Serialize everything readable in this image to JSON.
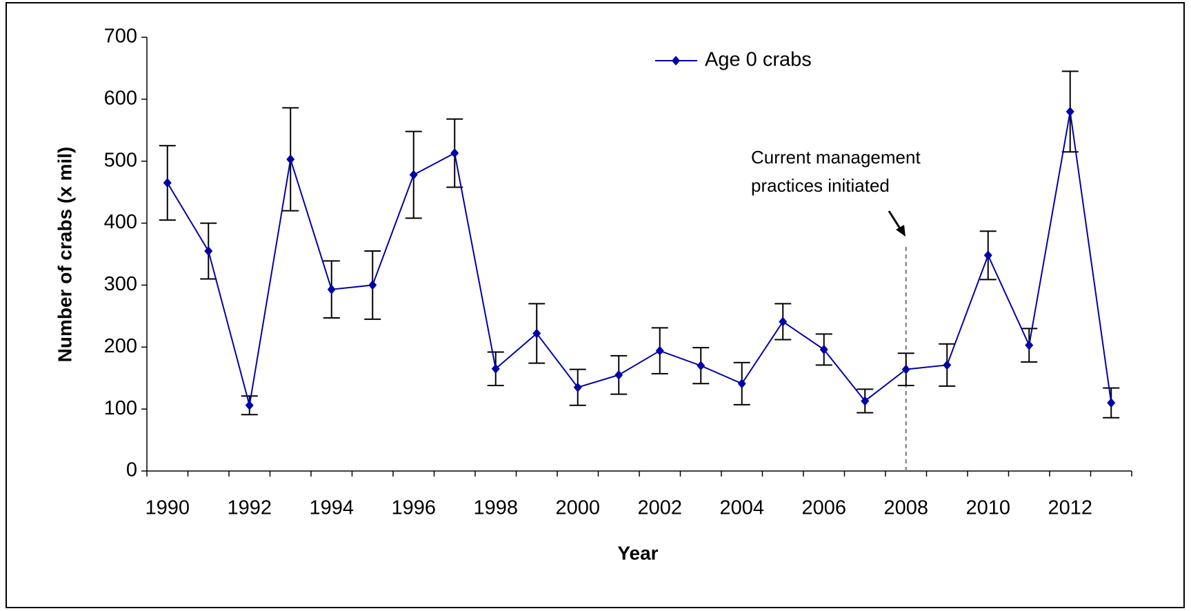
{
  "chart_data": {
    "type": "line",
    "xlabel": "Year",
    "ylabel": "Number of crabs (x mil)",
    "categories": [
      "1990",
      null,
      "1992",
      null,
      "1994",
      null,
      "1996",
      null,
      "1998",
      null,
      "2000",
      null,
      "2002",
      null,
      "2004",
      null,
      "2006",
      null,
      "2008",
      null,
      "2010",
      null,
      "2012",
      null
    ],
    "series": [
      {
        "name": "Age 0 crabs",
        "color": "#0000a8",
        "values": [
          465,
          355,
          106,
          503,
          293,
          300,
          478,
          513,
          165,
          222,
          135,
          155,
          194,
          170,
          141,
          241,
          196,
          113,
          164,
          171,
          348,
          203,
          580,
          110
        ],
        "errors": [
          60,
          45,
          15,
          83,
          46,
          55,
          70,
          55,
          27,
          48,
          29,
          31,
          37,
          29,
          34,
          29,
          25,
          19,
          26,
          34,
          39,
          27,
          65,
          24
        ]
      }
    ],
    "ylim": [
      0,
      700
    ],
    "yticks": [
      0,
      100,
      200,
      300,
      400,
      500,
      600,
      700
    ],
    "annotation": [
      "Current management",
      "practices initiated"
    ],
    "legend": "top"
  }
}
